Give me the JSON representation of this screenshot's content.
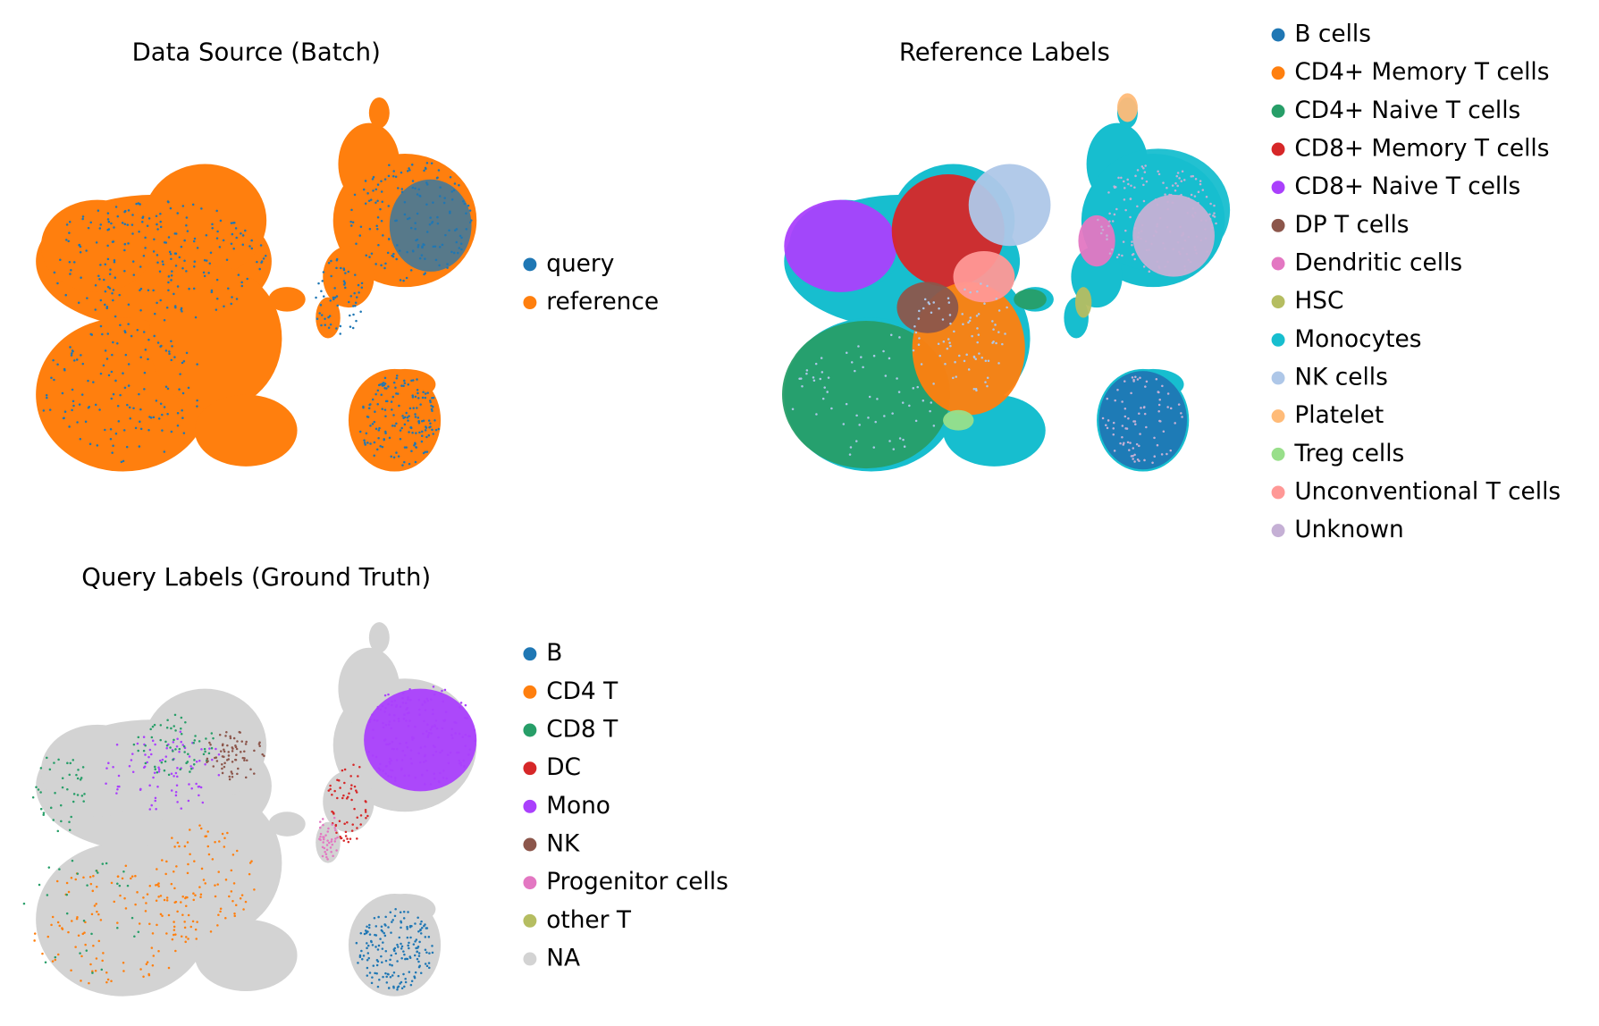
{
  "chart_data": [
    {
      "type": "scatter",
      "title": "Data Source (Batch)",
      "series": [
        {
          "name": "query",
          "color": "#1f77b4"
        },
        {
          "name": "reference",
          "color": "#ff7f0e"
        }
      ]
    },
    {
      "type": "scatter",
      "title": "Reference Labels",
      "series": [
        {
          "name": "B cells",
          "color": "#1f77b4"
        },
        {
          "name": "CD4+ Memory T cells",
          "color": "#ff7f0e"
        },
        {
          "name": "CD4+ Naive T cells",
          "color": "#279e68"
        },
        {
          "name": "CD8+ Memory T cells",
          "color": "#d62728"
        },
        {
          "name": "CD8+ Naive T cells",
          "color": "#aa40fc"
        },
        {
          "name": "DP T cells",
          "color": "#8c564b"
        },
        {
          "name": "Dendritic cells",
          "color": "#e377c2"
        },
        {
          "name": "HSC",
          "color": "#b5bd61"
        },
        {
          "name": "Monocytes",
          "color": "#17becf"
        },
        {
          "name": "NK cells",
          "color": "#aec7e8"
        },
        {
          "name": "Platelet",
          "color": "#ffbb78"
        },
        {
          "name": "Treg cells",
          "color": "#98df8a"
        },
        {
          "name": "Unconventional T cells",
          "color": "#ff9896"
        },
        {
          "name": "Unknown",
          "color": "#c5b0d5"
        }
      ]
    },
    {
      "type": "scatter",
      "title": "Query Labels (Ground Truth)",
      "series": [
        {
          "name": "B",
          "color": "#1f77b4"
        },
        {
          "name": "CD4 T",
          "color": "#ff7f0e"
        },
        {
          "name": "CD8 T",
          "color": "#279e68"
        },
        {
          "name": "DC",
          "color": "#d62728"
        },
        {
          "name": "Mono",
          "color": "#aa40fc"
        },
        {
          "name": "NK",
          "color": "#8c564b"
        },
        {
          "name": "Progenitor cells",
          "color": "#e377c2"
        },
        {
          "name": "other T",
          "color": "#b5bd61"
        },
        {
          "name": "NA",
          "color": "#d3d3d3"
        }
      ]
    }
  ]
}
